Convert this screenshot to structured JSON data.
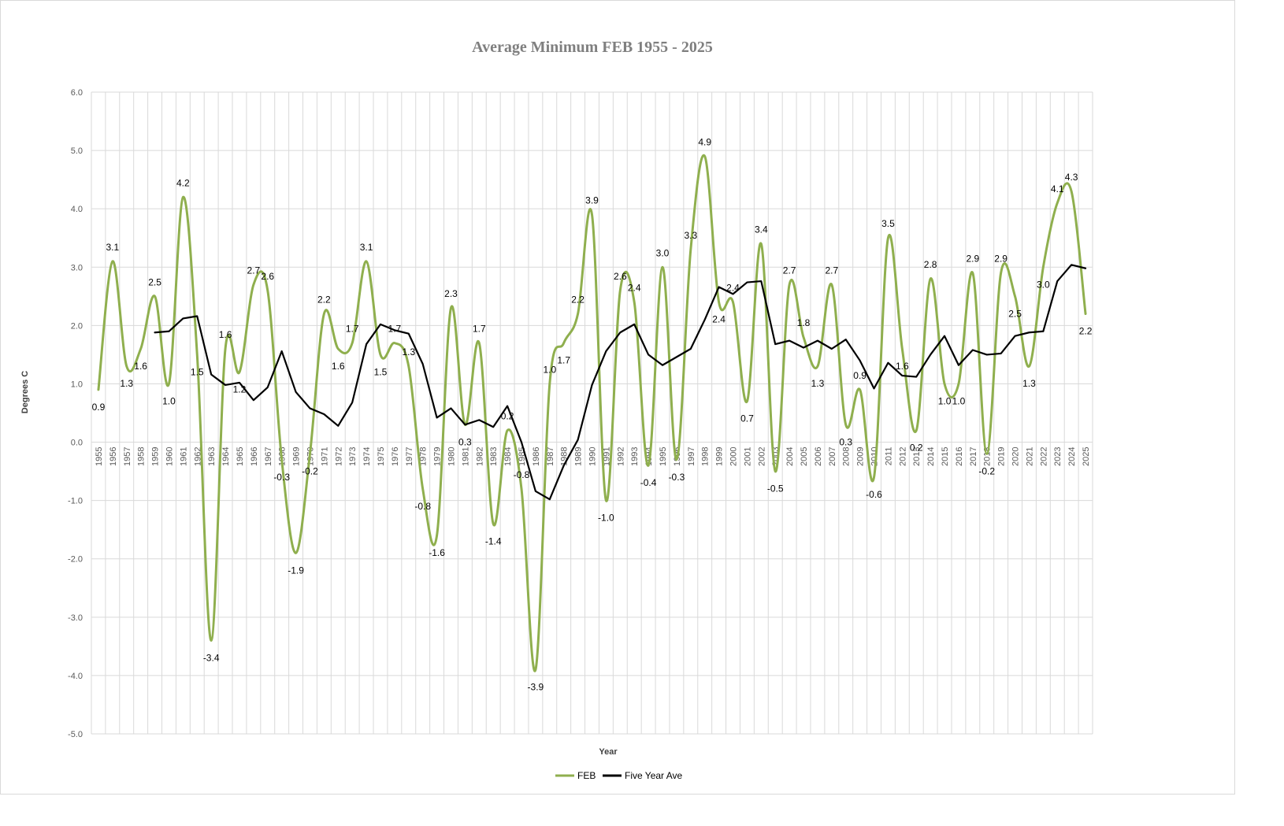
{
  "chart_data": {
    "type": "line",
    "title": "Average Minimum FEB 1955 - 2025",
    "xlabel": "Year",
    "ylabel": "Degrees C",
    "ylim": [
      -5,
      6
    ],
    "y_ticks": [
      "-5.0",
      "-4.0",
      "-3.0",
      "-2.0",
      "-1.0",
      "0.0",
      "1.0",
      "2.0",
      "3.0",
      "4.0",
      "5.0",
      "6.0"
    ],
    "grid": true,
    "legend_position": "bottom",
    "x": [
      1955,
      1956,
      1957,
      1958,
      1959,
      1960,
      1961,
      1962,
      1963,
      1964,
      1965,
      1966,
      1967,
      1968,
      1969,
      1970,
      1971,
      1972,
      1973,
      1974,
      1975,
      1976,
      1977,
      1978,
      1979,
      1980,
      1981,
      1982,
      1983,
      1984,
      1985,
      1986,
      1987,
      1988,
      1989,
      1990,
      1991,
      1992,
      1993,
      1994,
      1995,
      1996,
      1997,
      1998,
      1999,
      2000,
      2001,
      2002,
      2003,
      2004,
      2005,
      2006,
      2007,
      2008,
      2009,
      2010,
      2011,
      2012,
      2013,
      2014,
      2015,
      2016,
      2017,
      2018,
      2019,
      2020,
      2021,
      2022,
      2023,
      2024,
      2025
    ],
    "series": [
      {
        "name": "FEB",
        "color": "#8faf4e",
        "smooth": true,
        "values": [
          0.9,
          3.1,
          1.3,
          1.6,
          2.5,
          1.0,
          4.2,
          1.5,
          -3.4,
          1.6,
          1.2,
          2.7,
          2.6,
          -0.3,
          -1.9,
          -0.2,
          2.2,
          1.6,
          1.7,
          3.1,
          1.5,
          1.7,
          1.3,
          -0.8,
          -1.6,
          2.3,
          0.3,
          1.7,
          -1.4,
          0.2,
          -0.8,
          -3.9,
          1.0,
          1.7,
          2.2,
          3.9,
          -1.0,
          2.6,
          2.4,
          -0.4,
          3.0,
          -0.3,
          3.3,
          4.9,
          2.4,
          2.4,
          0.7,
          3.4,
          -0.5,
          2.7,
          1.8,
          1.3,
          2.7,
          0.3,
          0.9,
          -0.6,
          3.5,
          1.6,
          0.2,
          2.8,
          1.0,
          1.0,
          2.9,
          -0.2,
          2.9,
          2.5,
          1.3,
          3.0,
          4.1,
          4.3,
          2.2
        ],
        "labels": [
          "0.9",
          "3.1",
          "1.3",
          "1.6",
          "2.5",
          "1.0",
          "4.2",
          "1.5",
          "-3.4",
          "1.6",
          "1.2",
          "2.7",
          "2.6",
          "-0.3",
          "-1.9",
          "-0.2",
          "2.2",
          "1.6",
          "1.7",
          "3.1",
          "1.5",
          "1.7",
          "1.3",
          "-0.8",
          "-1.6",
          "2.3",
          "0.3",
          "1.7",
          "-1.4",
          "0.2",
          "-0.8",
          "-3.9",
          "1.0",
          "1.7",
          "2.2",
          "3.9",
          "-1.0",
          "2.6",
          "2.4",
          "-0.4",
          "3.0",
          "-0.3",
          "3.3",
          "4.9",
          "2.4",
          "2.4",
          "0.7",
          "3.4",
          "-0.5",
          "2.7",
          "1.8",
          "1.3",
          "2.7",
          "0.3",
          "0.9",
          "-0.6",
          "3.5",
          "1.6",
          "0.2",
          "2.8",
          "1.0",
          "1.0",
          "2.9",
          "-0.2",
          "2.9",
          "2.5",
          "1.3",
          "3.0",
          "4.1",
          "4.3",
          "2.2"
        ]
      },
      {
        "name": "Five Year Ave",
        "color": "#000000",
        "smooth": false,
        "values": [
          null,
          null,
          null,
          null,
          1.88,
          1.9,
          2.12,
          2.16,
          1.16,
          0.98,
          1.02,
          0.72,
          0.94,
          1.56,
          0.86,
          0.58,
          0.48,
          0.28,
          0.68,
          1.68,
          2.02,
          1.92,
          1.86,
          1.34,
          0.42,
          0.58,
          0.3,
          0.38,
          0.26,
          0.62,
          0.0,
          -0.84,
          -0.98,
          -0.4,
          0.04,
          0.98,
          1.56,
          1.88,
          2.02,
          1.5,
          1.32,
          1.46,
          1.6,
          2.1,
          2.66,
          2.54,
          2.74,
          2.76,
          1.68,
          1.74,
          1.62,
          1.74,
          1.6,
          1.76,
          1.4,
          0.92,
          1.36,
          1.14,
          1.12,
          1.5,
          1.82,
          1.32,
          1.58,
          1.5,
          1.52,
          1.82,
          1.88,
          1.9,
          2.76,
          3.04,
          2.98
        ]
      }
    ]
  }
}
